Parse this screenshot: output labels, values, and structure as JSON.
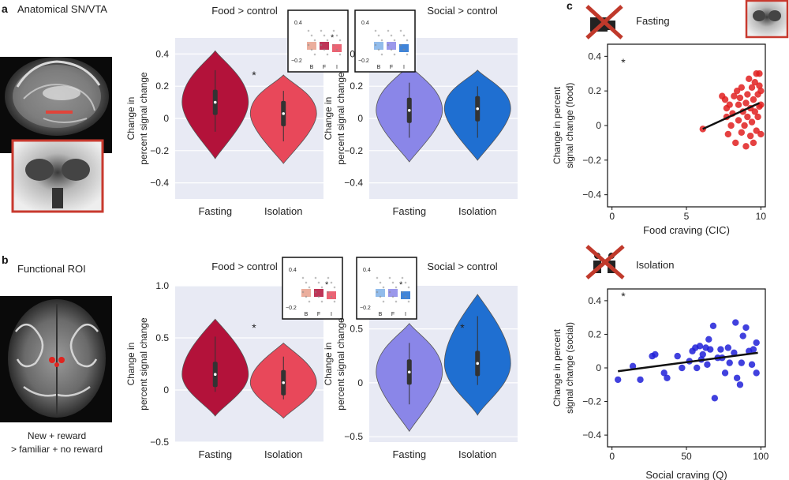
{
  "panel_letters": {
    "a": "a",
    "b": "b",
    "c": "c"
  },
  "brain": {
    "a_title": "Anatomical SN/VTA",
    "b_title": "Functional ROI",
    "b_caption_line1": "New + reward",
    "b_caption_line2": "> familiar + no reward"
  },
  "colors": {
    "fasting_red": "#b3123a",
    "isolation_red": "#e8485a",
    "fasting_blue": "#8a86e8",
    "isolation_blue": "#1f6fd1",
    "food_dot": "#e02020",
    "social_dot": "#2020d8",
    "violin_bg": "#e8eaf4"
  },
  "chart_data": [
    {
      "type": "violin",
      "id": "a-food",
      "title": "Food > control",
      "ylabel_lines": [
        "Change in",
        "percent signal change"
      ],
      "categories": [
        "Fasting",
        "Isolation"
      ],
      "y_ticks": [
        0.4,
        0.2,
        0,
        -0.2,
        -0.4
      ],
      "y_tick_labels": [
        "0.4",
        "0.2",
        "0",
        "−0.2",
        "−0.4"
      ],
      "ylim": [
        -0.5,
        0.5
      ],
      "significance": "*",
      "medians": [
        0.1,
        0.03
      ],
      "ranges": [
        [
          -0.25,
          0.42
        ],
        [
          -0.28,
          0.27
        ]
      ],
      "inset": {
        "categories": [
          "B",
          "F",
          "I"
        ],
        "y_ticks": [
          "0.4",
          "−0.2"
        ],
        "significance": "*"
      }
    },
    {
      "type": "violin",
      "id": "a-social",
      "title": "Social > control",
      "ylabel_lines": [
        "Change in",
        "percent signal change"
      ],
      "categories": [
        "Fasting",
        "Isolation"
      ],
      "y_ticks": [
        0.4,
        0.2,
        0,
        -0.2,
        -0.4
      ],
      "y_tick_labels": [
        "0.4",
        "0.2",
        "0",
        "−0.2",
        "−0.4"
      ],
      "ylim": [
        -0.5,
        0.5
      ],
      "significance": "",
      "medians": [
        0.05,
        0.06
      ],
      "ranges": [
        [
          -0.27,
          0.33
        ],
        [
          -0.26,
          0.3
        ]
      ],
      "inset": {
        "categories": [
          "B",
          "F",
          "I"
        ],
        "y_ticks": [
          "0.4",
          "−0.2"
        ],
        "significance": ""
      }
    },
    {
      "type": "violin",
      "id": "b-food",
      "title": "Food > control",
      "ylabel_lines": [
        "Change in",
        "percent signal change"
      ],
      "categories": [
        "Fasting",
        "Isolation"
      ],
      "y_ticks": [
        1.0,
        0.5,
        0,
        -0.5
      ],
      "y_tick_labels": [
        "1.0",
        "0.5",
        "0",
        "−0.5"
      ],
      "ylim": [
        -0.5,
        1.0
      ],
      "significance": "*",
      "medians": [
        0.15,
        0.07
      ],
      "ranges": [
        [
          -0.25,
          0.68
        ],
        [
          -0.27,
          0.45
        ]
      ],
      "inset": {
        "categories": [
          "B",
          "F",
          "I"
        ],
        "y_ticks": [
          "0.4",
          "−0.2"
        ],
        "significance": "*"
      }
    },
    {
      "type": "violin",
      "id": "b-social",
      "title": "Social > control",
      "ylabel_lines": [
        "Change in",
        "percent signal change"
      ],
      "categories": [
        "Fasting",
        "Isolation"
      ],
      "y_ticks": [
        0.5,
        0,
        -0.5
      ],
      "y_tick_labels": [
        "0.5",
        "0",
        "−0.5"
      ],
      "ylim": [
        -0.55,
        0.9
      ],
      "significance": "*",
      "medians": [
        0.1,
        0.18
      ],
      "ranges": [
        [
          -0.45,
          0.55
        ],
        [
          -0.3,
          0.82
        ]
      ],
      "inset": {
        "categories": [
          "B",
          "F",
          "I"
        ],
        "y_ticks": [
          "0.4",
          "−0.2"
        ],
        "significance": "*"
      }
    },
    {
      "type": "scatter",
      "id": "c-food",
      "header": "Fasting",
      "xlabel": "Food craving (CIC)",
      "ylabel_lines": [
        "Change in percent",
        "signal change (food)"
      ],
      "x_ticks": [
        0,
        5,
        10
      ],
      "y_ticks": [
        0.4,
        0.2,
        0,
        -0.2,
        -0.4
      ],
      "y_tick_labels": [
        "0.4",
        "0.2",
        "0",
        "−0.2",
        "−0.4"
      ],
      "xlim": [
        -0.3,
        10.3
      ],
      "ylim": [
        -0.47,
        0.47
      ],
      "significance": "*",
      "fit": {
        "x0": 6.1,
        "y0": -0.02,
        "x1": 9.9,
        "y1": 0.13
      },
      "points": [
        [
          6.1,
          -0.02
        ],
        [
          7.4,
          0.17
        ],
        [
          7.6,
          0.15
        ],
        [
          7.7,
          0.05
        ],
        [
          7.7,
          0.1
        ],
        [
          7.8,
          -0.05
        ],
        [
          7.9,
          0.12
        ],
        [
          8.0,
          0.0
        ],
        [
          8.1,
          0.07
        ],
        [
          8.2,
          0.17
        ],
        [
          8.3,
          -0.1
        ],
        [
          8.4,
          0.2
        ],
        [
          8.5,
          0.12
        ],
        [
          8.5,
          0.03
        ],
        [
          8.6,
          0.16
        ],
        [
          8.7,
          -0.04
        ],
        [
          8.7,
          0.22
        ],
        [
          8.8,
          0.08
        ],
        [
          8.9,
          0.0
        ],
        [
          9.0,
          0.13
        ],
        [
          9.0,
          -0.12
        ],
        [
          9.1,
          0.18
        ],
        [
          9.1,
          0.05
        ],
        [
          9.2,
          0.27
        ],
        [
          9.3,
          -0.06
        ],
        [
          9.3,
          0.1
        ],
        [
          9.4,
          0.22
        ],
        [
          9.4,
          0.02
        ],
        [
          9.5,
          0.15
        ],
        [
          9.5,
          -0.1
        ],
        [
          9.6,
          0.08
        ],
        [
          9.6,
          0.25
        ],
        [
          9.7,
          0.3
        ],
        [
          9.7,
          -0.03
        ],
        [
          9.8,
          0.18
        ],
        [
          9.8,
          0.05
        ],
        [
          9.9,
          0.3
        ],
        [
          9.9,
          0.11
        ],
        [
          10.0,
          0.2
        ],
        [
          10.0,
          -0.05
        ],
        [
          10.0,
          0.12
        ],
        [
          9.9,
          0.23
        ]
      ]
    },
    {
      "type": "scatter",
      "id": "c-social",
      "header": "Isolation",
      "xlabel": "Social craving (Q)",
      "ylabel_lines": [
        "Change in percent",
        "signal change (social)"
      ],
      "x_ticks": [
        0,
        50,
        100
      ],
      "y_ticks": [
        0.4,
        0.2,
        0,
        -0.2,
        -0.4
      ],
      "y_tick_labels": [
        "0.4",
        "0.2",
        "0",
        "−0.2",
        "−0.4"
      ],
      "xlim": [
        -3,
        103
      ],
      "ylim": [
        -0.47,
        0.47
      ],
      "significance": "*",
      "fit": {
        "x0": 4,
        "y0": -0.02,
        "x1": 98,
        "y1": 0.09
      },
      "points": [
        [
          4,
          -0.07
        ],
        [
          14,
          0.01
        ],
        [
          19,
          -0.07
        ],
        [
          27,
          0.07
        ],
        [
          29,
          0.08
        ],
        [
          35,
          -0.03
        ],
        [
          37,
          -0.06
        ],
        [
          44,
          0.07
        ],
        [
          47,
          0.0
        ],
        [
          52,
          0.04
        ],
        [
          54,
          0.1
        ],
        [
          56,
          0.12
        ],
        [
          57,
          0.0
        ],
        [
          59,
          0.13
        ],
        [
          60,
          0.05
        ],
        [
          61,
          0.08
        ],
        [
          63,
          0.12
        ],
        [
          64,
          0.02
        ],
        [
          65,
          0.17
        ],
        [
          66,
          0.11
        ],
        [
          68,
          0.25
        ],
        [
          69,
          -0.18
        ],
        [
          71,
          0.06
        ],
        [
          73,
          0.11
        ],
        [
          74,
          0.06
        ],
        [
          76,
          -0.03
        ],
        [
          78,
          0.12
        ],
        [
          79,
          0.03
        ],
        [
          82,
          0.09
        ],
        [
          83,
          0.27
        ],
        [
          84,
          -0.06
        ],
        [
          86,
          -0.1
        ],
        [
          87,
          0.03
        ],
        [
          88,
          0.19
        ],
        [
          90,
          0.24
        ],
        [
          92,
          0.1
        ],
        [
          94,
          0.02
        ],
        [
          95,
          0.11
        ],
        [
          97,
          0.15
        ],
        [
          97,
          -0.03
        ]
      ]
    }
  ]
}
